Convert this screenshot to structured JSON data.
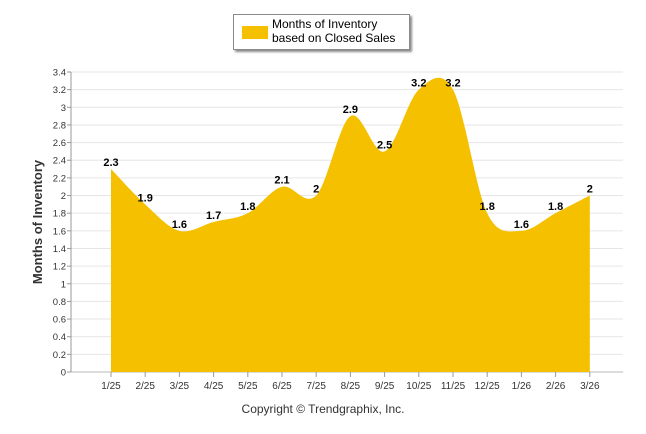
{
  "chart_data": {
    "type": "area",
    "title": "",
    "xlabel": "",
    "ylabel": "Months of Inventory",
    "ylim": [
      0,
      3.4
    ],
    "ytick_step": 0.2,
    "grid": true,
    "legend_position": "top-center",
    "categories": [
      "1/25",
      "2/25",
      "3/25",
      "4/25",
      "5/25",
      "6/25",
      "7/25",
      "8/25",
      "9/25",
      "10/25",
      "11/25",
      "12/25",
      "1/26",
      "2/26",
      "3/26"
    ],
    "series": [
      {
        "name": "Months of Inventory based on Closed Sales",
        "values": [
          2.3,
          1.9,
          1.6,
          1.7,
          1.8,
          2.1,
          2,
          2.9,
          2.5,
          3.2,
          3.2,
          1.8,
          1.6,
          1.8,
          2
        ],
        "data_labels": [
          "2.3",
          "1.9",
          "1.6",
          "1.7",
          "1.8",
          "2.1",
          "2",
          "2.9",
          "2.5",
          "3.2",
          "3.2",
          "1.8",
          "1.6",
          "1.8",
          "2"
        ],
        "color": "#F5C000"
      }
    ]
  },
  "legend": {
    "label": "Months of Inventory based on Closed Sales"
  },
  "footer": {
    "copyright": "Copyright © Trendgraphix, Inc."
  },
  "colors": {
    "area": "#F5C000",
    "grid": "#e6e6e6",
    "axis": "#999999"
  }
}
